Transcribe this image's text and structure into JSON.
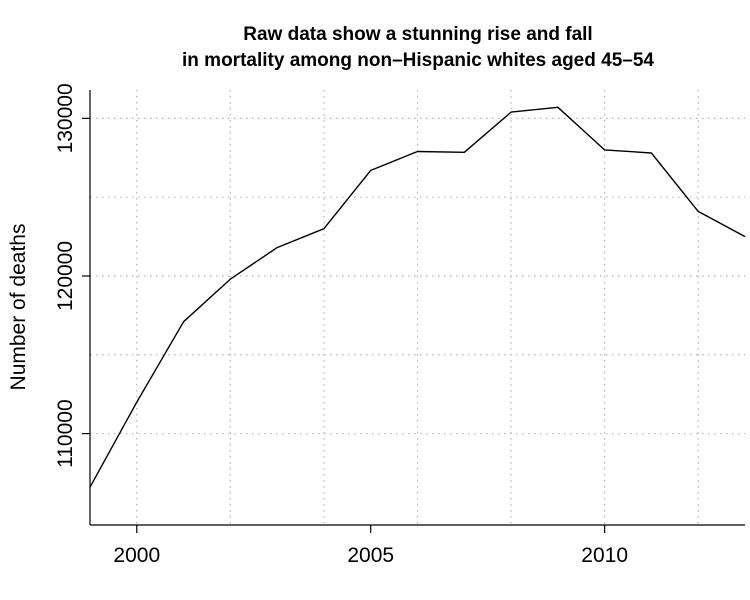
{
  "chart_data": {
    "type": "line",
    "title": [
      "Raw data show a stunning rise and fall",
      "in mortality among non–Hispanic whites aged 45–54"
    ],
    "xlabel": "",
    "ylabel": "Number of deaths",
    "x": [
      1999,
      2000,
      2001,
      2002,
      2003,
      2004,
      2005,
      2006,
      2007,
      2008,
      2009,
      2010,
      2011,
      2012,
      2013
    ],
    "series": [
      {
        "values": [
          106600,
          112000,
          117100,
          119800,
          121800,
          123000,
          126700,
          127900,
          127850,
          130400,
          130700,
          128000,
          127800,
          124100,
          122500
        ],
        "color": "#000000"
      }
    ],
    "xlim": [
      1999,
      2013
    ],
    "ylim": [
      104200,
      131800
    ],
    "x_ticks": [
      2000,
      2005,
      2010
    ],
    "x_tick_labels": [
      "2000",
      "2005",
      "2010"
    ],
    "y_ticks": [
      110000,
      120000,
      130000
    ],
    "y_tick_labels": [
      "110000",
      "120000",
      "130000"
    ],
    "grid": true,
    "grid_x": [
      2000,
      2002,
      2004,
      2006,
      2008,
      2010,
      2012
    ],
    "grid_y": [
      110000,
      115000,
      120000,
      125000,
      130000
    ],
    "legend": "none"
  }
}
